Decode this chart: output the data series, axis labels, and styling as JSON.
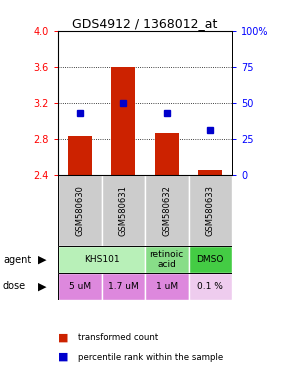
{
  "title": "GDS4912 / 1368012_at",
  "samples": [
    "GSM580630",
    "GSM580631",
    "GSM580632",
    "GSM580633"
  ],
  "bar_values": [
    2.83,
    3.6,
    2.86,
    2.45
  ],
  "bar_bottom": 2.4,
  "percentile_values": [
    3.09,
    3.2,
    3.09,
    2.89
  ],
  "ylim": [
    2.4,
    4.0
  ],
  "yticks_left": [
    2.4,
    2.8,
    3.2,
    3.6,
    4.0
  ],
  "yticks_right": [
    0,
    25,
    50,
    75,
    100
  ],
  "yticks_right_labels": [
    "0",
    "25",
    "50",
    "75",
    "100%"
  ],
  "bar_color": "#cc2200",
  "dot_color": "#0000cc",
  "agent_groups": [
    {
      "cols": [
        0,
        1
      ],
      "label": "KHS101",
      "color": "#b8f0b8"
    },
    {
      "cols": [
        2
      ],
      "label": "retinoic\nacid",
      "color": "#88dd88"
    },
    {
      "cols": [
        3
      ],
      "label": "DMSO",
      "color": "#44cc44"
    }
  ],
  "dose_labels": [
    "5 uM",
    "1.7 uM",
    "1 uM",
    "0.1 %"
  ],
  "dose_colors": [
    "#dd88dd",
    "#dd88dd",
    "#dd88dd",
    "#eeccee"
  ],
  "sample_bg": "#cccccc",
  "legend_items": [
    {
      "color": "#cc2200",
      "label": "transformed count"
    },
    {
      "color": "#0000cc",
      "label": "percentile rank within the sample"
    }
  ]
}
